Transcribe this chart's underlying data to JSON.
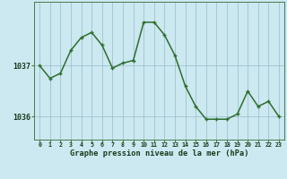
{
  "hours": [
    0,
    1,
    2,
    3,
    4,
    5,
    6,
    7,
    8,
    9,
    10,
    11,
    12,
    13,
    14,
    15,
    16,
    17,
    18,
    19,
    20,
    21,
    22,
    23
  ],
  "pressure": [
    1037.0,
    1036.75,
    1036.85,
    1037.3,
    1037.55,
    1037.65,
    1037.4,
    1036.95,
    1037.05,
    1037.1,
    1037.85,
    1037.85,
    1037.6,
    1037.2,
    1036.6,
    1036.2,
    1035.95,
    1035.95,
    1035.95,
    1036.05,
    1036.5,
    1036.2,
    1036.3,
    1036.0
  ],
  "line_color": "#2d6e2d",
  "marker_color": "#2d6e2d",
  "bg_color": "#cce8f0",
  "grid_color": "#99bbcc",
  "xlabel": "Graphe pression niveau de la mer (hPa)",
  "xlabel_color": "#1a3a1a",
  "tick_color": "#1a3a1a",
  "yticks": [
    1036,
    1037
  ],
  "ylim": [
    1035.55,
    1038.25
  ],
  "xlim": [
    -0.5,
    23.5
  ],
  "marker_size": 3.5,
  "line_width": 1.1
}
